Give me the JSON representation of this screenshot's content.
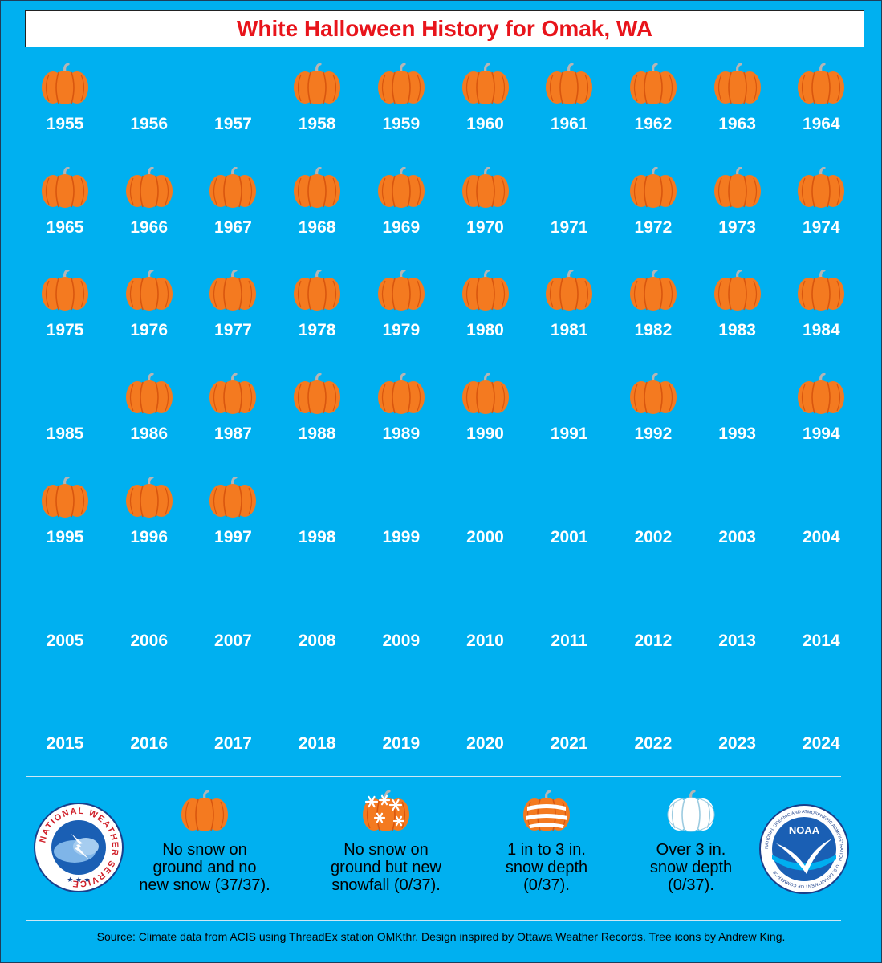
{
  "title": "White Halloween History for Omak, WA",
  "colors": {
    "background": "#00b0f0",
    "title": "#e8141b",
    "pumpkin": "#f47a20",
    "pumpkin_dark": "#d9560e",
    "stem": "#b5b5b5"
  },
  "years": [
    {
      "year": "1955",
      "pumpkin": true
    },
    {
      "year": "1956",
      "pumpkin": false
    },
    {
      "year": "1957",
      "pumpkin": false
    },
    {
      "year": "1958",
      "pumpkin": true
    },
    {
      "year": "1959",
      "pumpkin": true
    },
    {
      "year": "1960",
      "pumpkin": true
    },
    {
      "year": "1961",
      "pumpkin": true
    },
    {
      "year": "1962",
      "pumpkin": true
    },
    {
      "year": "1963",
      "pumpkin": true
    },
    {
      "year": "1964",
      "pumpkin": true
    },
    {
      "year": "1965",
      "pumpkin": true
    },
    {
      "year": "1966",
      "pumpkin": true
    },
    {
      "year": "1967",
      "pumpkin": true
    },
    {
      "year": "1968",
      "pumpkin": true
    },
    {
      "year": "1969",
      "pumpkin": true
    },
    {
      "year": "1970",
      "pumpkin": true
    },
    {
      "year": "1971",
      "pumpkin": false
    },
    {
      "year": "1972",
      "pumpkin": true
    },
    {
      "year": "1973",
      "pumpkin": true
    },
    {
      "year": "1974",
      "pumpkin": true
    },
    {
      "year": "1975",
      "pumpkin": true
    },
    {
      "year": "1976",
      "pumpkin": true
    },
    {
      "year": "1977",
      "pumpkin": true
    },
    {
      "year": "1978",
      "pumpkin": true
    },
    {
      "year": "1979",
      "pumpkin": true
    },
    {
      "year": "1980",
      "pumpkin": true
    },
    {
      "year": "1981",
      "pumpkin": true
    },
    {
      "year": "1982",
      "pumpkin": true
    },
    {
      "year": "1983",
      "pumpkin": true
    },
    {
      "year": "1984",
      "pumpkin": true
    },
    {
      "year": "1985",
      "pumpkin": false
    },
    {
      "year": "1986",
      "pumpkin": true
    },
    {
      "year": "1987",
      "pumpkin": true
    },
    {
      "year": "1988",
      "pumpkin": true
    },
    {
      "year": "1989",
      "pumpkin": true
    },
    {
      "year": "1990",
      "pumpkin": true
    },
    {
      "year": "1991",
      "pumpkin": false
    },
    {
      "year": "1992",
      "pumpkin": true
    },
    {
      "year": "1993",
      "pumpkin": false
    },
    {
      "year": "1994",
      "pumpkin": true
    },
    {
      "year": "1995",
      "pumpkin": true
    },
    {
      "year": "1996",
      "pumpkin": true
    },
    {
      "year": "1997",
      "pumpkin": true
    },
    {
      "year": "1998",
      "pumpkin": false
    },
    {
      "year": "1999",
      "pumpkin": false
    },
    {
      "year": "2000",
      "pumpkin": false
    },
    {
      "year": "2001",
      "pumpkin": false
    },
    {
      "year": "2002",
      "pumpkin": false
    },
    {
      "year": "2003",
      "pumpkin": false
    },
    {
      "year": "2004",
      "pumpkin": false
    },
    {
      "year": "2005",
      "pumpkin": false
    },
    {
      "year": "2006",
      "pumpkin": false
    },
    {
      "year": "2007",
      "pumpkin": false
    },
    {
      "year": "2008",
      "pumpkin": false
    },
    {
      "year": "2009",
      "pumpkin": false
    },
    {
      "year": "2010",
      "pumpkin": false
    },
    {
      "year": "2011",
      "pumpkin": false
    },
    {
      "year": "2012",
      "pumpkin": false
    },
    {
      "year": "2013",
      "pumpkin": false
    },
    {
      "year": "2014",
      "pumpkin": false
    },
    {
      "year": "2015",
      "pumpkin": false
    },
    {
      "year": "2016",
      "pumpkin": false
    },
    {
      "year": "2017",
      "pumpkin": false
    },
    {
      "year": "2018",
      "pumpkin": false
    },
    {
      "year": "2019",
      "pumpkin": false
    },
    {
      "year": "2020",
      "pumpkin": false
    },
    {
      "year": "2021",
      "pumpkin": false
    },
    {
      "year": "2022",
      "pumpkin": false
    },
    {
      "year": "2023",
      "pumpkin": false
    },
    {
      "year": "2024",
      "pumpkin": false
    }
  ],
  "legend": [
    {
      "icon": "orange-pumpkin-icon",
      "lines": [
        "No snow on",
        "ground and no",
        "new snow (37/37)."
      ]
    },
    {
      "icon": "snowflake-pumpkin-icon",
      "lines": [
        "No snow on",
        "ground but new",
        "snowfall (0/37)."
      ]
    },
    {
      "icon": "striped-pumpkin-icon",
      "lines": [
        "1 in to 3 in.",
        "snow depth",
        "(0/37)."
      ]
    },
    {
      "icon": "white-pumpkin-icon",
      "lines": [
        "Over 3 in.",
        "snow depth",
        "(0/37)."
      ]
    }
  ],
  "logos": {
    "nws": "NATIONAL WEATHER SERVICE",
    "noaa_center": "NOAA",
    "noaa_ring": "NATIONAL OCEANIC AND ATMOSPHERIC ADMINISTRATION · U.S. DEPARTMENT OF COMMERCE"
  },
  "source": "Source: Climate data from ACIS using ThreadEx station OMKthr. Design inspired by Ottawa Weather Records. Tree icons by Andrew King."
}
